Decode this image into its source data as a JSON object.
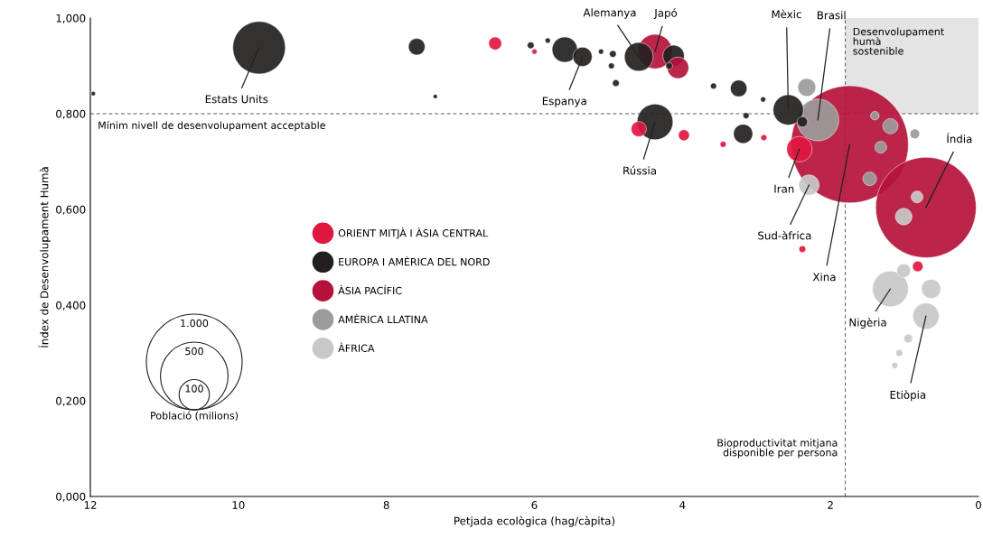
{
  "chart_data": {
    "type": "bubble",
    "xlabel": "Petjada ecològica (hag/càpita)",
    "ylabel": "Índex de Desenvolupament Humà",
    "xlim": [
      12,
      0
    ],
    "xticks": [
      12,
      10,
      8,
      6,
      4,
      2,
      0
    ],
    "ylim": [
      0,
      1.0
    ],
    "yticks": [
      {
        "value": 0,
        "label": "0,000"
      },
      {
        "value": 0.2,
        "label": "0,200"
      },
      {
        "value": 0.4,
        "label": "0,400"
      },
      {
        "value": 0.6,
        "label": "0,600"
      },
      {
        "value": 0.8,
        "label": "0,800"
      },
      {
        "value": 1.0,
        "label": "1,000"
      }
    ],
    "grid": false,
    "legend": "left",
    "size_legend": [
      {
        "value": 1000,
        "label": "1.000"
      },
      {
        "value": 500,
        "label": "500"
      },
      {
        "value": 100,
        "label": "100"
      }
    ],
    "ref_lines": [
      {
        "axis": "y",
        "value": 0.8,
        "label": "Mínim nivell de desenvolupament acceptable",
        "color": "#555555",
        "line_style": "dashed"
      },
      {
        "axis": "x",
        "value": 1.8,
        "label": "Bioproductivitat mitjana\ndisponible per persona",
        "color": "#555555",
        "line_style": "dashed"
      }
    ],
    "bands": [
      {
        "axis": "x",
        "from": 1.8,
        "to": 0,
        "label": "Desenvolupament\nhumà\nsostenible",
        "color": "#e4e4e4"
      }
    ],
    "series": [
      {
        "name": "ORIENT MITJÀ I ÀSIA CENTRAL",
        "color": "#e0173f",
        "x": [
          6.53,
          6.0,
          4.59,
          3.98,
          3.45,
          2.9,
          2.42,
          2.38,
          0.82
        ],
        "values": [
          0.947,
          0.93,
          0.768,
          0.755,
          0.736,
          0.75,
          0.726,
          0.517,
          0.481
        ],
        "sizes": [
          18,
          3,
          25,
          13,
          4,
          4,
          70,
          5,
          12
        ]
      },
      {
        "name": "EUROPA I AMÈRICA DEL NORD",
        "color": "#231f20",
        "x": [
          11.96,
          9.72,
          7.59,
          7.34,
          6.05,
          5.82,
          5.59,
          5.35,
          5.1,
          4.94,
          4.96,
          4.9,
          4.59,
          4.12,
          4.18,
          4.37,
          3.58,
          3.24,
          2.91,
          3.14,
          3.18,
          2.57,
          2.38
        ],
        "values": [
          0.842,
          0.938,
          0.94,
          0.836,
          0.943,
          0.953,
          0.934,
          0.919,
          0.93,
          0.925,
          0.9,
          0.864,
          0.919,
          0.921,
          0.9,
          0.783,
          0.858,
          0.853,
          0.83,
          0.796,
          0.758,
          0.808,
          0.783
        ],
        "sizes": [
          2,
          300,
          30,
          2,
          5,
          3,
          70,
          40,
          3,
          5,
          4,
          5,
          90,
          50,
          5,
          140,
          4,
          30,
          3,
          4,
          40,
          100,
          12
        ]
      },
      {
        "name": "ÀSIA PACÍFIC",
        "color": "#b5123b",
        "x": [
          4.37,
          4.06,
          1.74,
          0.71
        ],
        "values": [
          0.93,
          0.896,
          0.736,
          0.604
        ],
        "sizes": [
          130,
          50,
          1500,
          1100
        ]
      },
      {
        "name": "AMÈRICA LLATINA",
        "color": "#9b9b9b",
        "x": [
          2.17,
          2.32,
          1.4,
          1.19,
          1.32,
          1.47,
          0.86
        ],
        "values": [
          0.787,
          0.855,
          0.796,
          0.774,
          0.73,
          0.664,
          0.758
        ],
        "sizes": [
          190,
          35,
          8,
          25,
          15,
          20,
          10
        ]
      },
      {
        "name": "ÀFRICA",
        "color": "#c8c8c8",
        "x": [
          2.29,
          1.19,
          0.71,
          1.01,
          0.64,
          0.95,
          1.07,
          1.13,
          1.01,
          0.83
        ],
        "values": [
          0.651,
          0.434,
          0.377,
          0.472,
          0.434,
          0.33,
          0.3,
          0.274,
          0.585,
          0.626
        ],
        "sizes": [
          45,
          140,
          75,
          20,
          40,
          8,
          5,
          4,
          30,
          15
        ]
      }
    ],
    "annotations": [
      {
        "text": "Estats Units",
        "x": 9.72,
        "y": 0.938
      },
      {
        "text": "Alemanya",
        "x": 4.59,
        "y": 0.919
      },
      {
        "text": "Japó",
        "x": 4.37,
        "y": 0.93
      },
      {
        "text": "Espanya",
        "x": 5.35,
        "y": 0.919
      },
      {
        "text": "Rússia",
        "x": 4.37,
        "y": 0.783
      },
      {
        "text": "Mèxic",
        "x": 2.57,
        "y": 0.808
      },
      {
        "text": "Brasil",
        "x": 2.17,
        "y": 0.787
      },
      {
        "text": "Índia",
        "x": 0.71,
        "y": 0.604
      },
      {
        "text": "Iran",
        "x": 2.42,
        "y": 0.726
      },
      {
        "text": "Sud-àfrica",
        "x": 2.29,
        "y": 0.651
      },
      {
        "text": "Xina",
        "x": 1.74,
        "y": 0.736
      },
      {
        "text": "Nigèria",
        "x": 1.19,
        "y": 0.434
      },
      {
        "text": "Etiòpia",
        "x": 0.71,
        "y": 0.377
      },
      "Població (milions)"
    ]
  }
}
